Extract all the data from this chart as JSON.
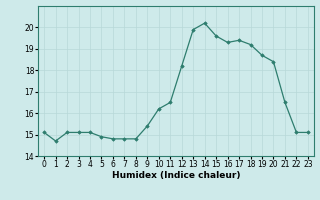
{
  "x": [
    0,
    1,
    2,
    3,
    4,
    5,
    6,
    7,
    8,
    9,
    10,
    11,
    12,
    13,
    14,
    15,
    16,
    17,
    18,
    19,
    20,
    21,
    22,
    23
  ],
  "y": [
    15.1,
    14.7,
    15.1,
    15.1,
    15.1,
    14.9,
    14.8,
    14.8,
    14.8,
    15.4,
    16.2,
    16.5,
    18.2,
    19.9,
    20.2,
    19.6,
    19.3,
    19.4,
    19.2,
    18.7,
    18.4,
    16.5,
    15.1,
    15.1
  ],
  "line_color": "#2e7d6e",
  "marker": "D",
  "marker_size": 1.8,
  "bg_color": "#ceeaea",
  "grid_color": "#b8d8d8",
  "xlabel": "Humidex (Indice chaleur)",
  "xlabel_fontsize": 6.5,
  "tick_fontsize": 5.5,
  "ylim": [
    14,
    21
  ],
  "yticks": [
    14,
    15,
    16,
    17,
    18,
    19,
    20
  ],
  "line_width": 0.9
}
